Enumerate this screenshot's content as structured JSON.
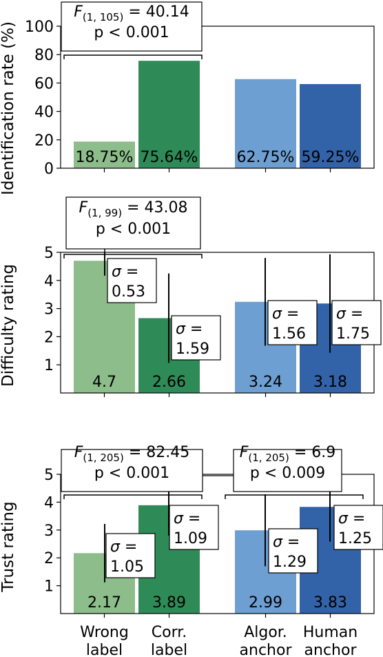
{
  "chart_data": [
    {
      "type": "bar",
      "ylabel": "Identification rate (%)",
      "yticks": [
        0,
        20,
        40,
        60,
        80,
        100
      ],
      "ylim": [
        0,
        100
      ],
      "categories": [
        "Wrong label",
        "Corr. label",
        "Algor. anchor",
        "Human anchor"
      ],
      "values": [
        18.75,
        75.64,
        62.75,
        59.25
      ],
      "value_labels": [
        "18.75%",
        "75.64%",
        "62.75%",
        "59.25%"
      ],
      "colors": [
        "#8cbd8a",
        "#2e8b57",
        "#6e9fd2",
        "#3262a8"
      ],
      "stats": [
        {
          "stat": "F",
          "df": "(1, 105)",
          "value": "=  40.14",
          "p": "p < 0.001",
          "bracket": [
            0,
            1
          ]
        }
      ],
      "sigma": []
    },
    {
      "type": "bar",
      "ylabel": "Difficulty rating",
      "yticks": [
        1,
        2,
        3,
        4,
        5
      ],
      "ylim": [
        0,
        5
      ],
      "categories": [
        "Wrong label",
        "Corr. label",
        "Algor. anchor",
        "Human anchor"
      ],
      "values": [
        4.7,
        2.66,
        3.24,
        3.18
      ],
      "value_labels": [
        "4.7",
        "2.66",
        "3.24",
        "3.18"
      ],
      "colors": [
        "#8cbd8a",
        "#2e8b57",
        "#6e9fd2",
        "#3262a8"
      ],
      "stats": [
        {
          "stat": "F",
          "df": "(1, 99)",
          "value": "=  43.08",
          "p": "p < 0.001",
          "bracket": [
            0,
            1
          ]
        }
      ],
      "sigma": [
        {
          "symbol": "σ =",
          "value": "0.53",
          "sd": 0.53
        },
        {
          "symbol": "σ =",
          "value": "1.59",
          "sd": 1.59
        },
        {
          "symbol": "σ =",
          "value": "1.56",
          "sd": 1.56
        },
        {
          "symbol": "σ =",
          "value": "1.75",
          "sd": 1.75
        }
      ]
    },
    {
      "type": "bar",
      "ylabel": "Trust rating",
      "yticks": [
        1,
        2,
        3,
        4,
        5
      ],
      "ylim": [
        0,
        5
      ],
      "categories": [
        "Wrong label",
        "Corr. label",
        "Algor. anchor",
        "Human anchor"
      ],
      "values": [
        2.17,
        3.89,
        2.99,
        3.83
      ],
      "value_labels": [
        "2.17",
        "3.89",
        "2.99",
        "3.83"
      ],
      "colors": [
        "#8cbd8a",
        "#2e8b57",
        "#6e9fd2",
        "#3262a8"
      ],
      "stats": [
        {
          "stat": "F",
          "df": "(1, 205)",
          "value": "=  82.45",
          "p": "p < 0.001",
          "bracket": [
            0,
            1
          ]
        },
        {
          "stat": "F",
          "df": "(1, 205)",
          "value": "=  6.9",
          "p": "p < 0.009",
          "bracket": [
            2,
            3
          ]
        }
      ],
      "sigma": [
        {
          "symbol": "σ =",
          "value": "1.05",
          "sd": 1.05
        },
        {
          "symbol": "σ =",
          "value": "1.09",
          "sd": 1.09
        },
        {
          "symbol": "σ =",
          "value": "1.29",
          "sd": 1.29
        },
        {
          "symbol": "σ =",
          "value": "1.25",
          "sd": 1.25
        }
      ]
    }
  ],
  "x_tick_labels": [
    [
      "Wrong",
      "label"
    ],
    [
      "Corr.",
      "label"
    ],
    [
      "Algor.",
      "anchor"
    ],
    [
      "Human",
      "anchor"
    ]
  ]
}
